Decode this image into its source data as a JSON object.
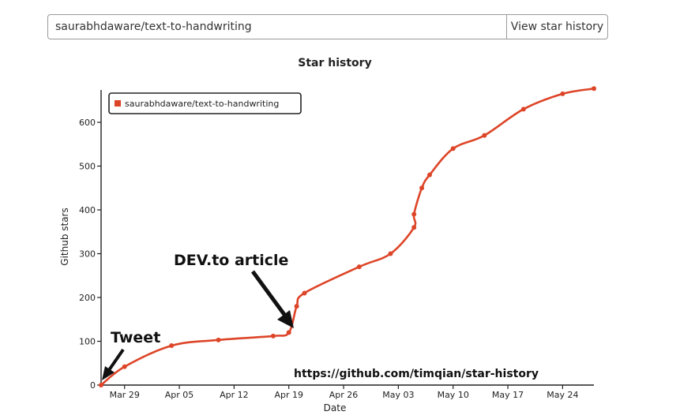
{
  "search": {
    "value": "saurabhdaware/text-to-handwriting",
    "button_label": "View star history"
  },
  "colors": {
    "series": "#dd4528",
    "axis": "#222222",
    "annotation": "#111111"
  },
  "chart_data": {
    "type": "line",
    "title": "Star history",
    "xlabel": "Date",
    "ylabel": "Github stars",
    "legend_position": "top-left",
    "grid": false,
    "xlim": [
      "2020-03-26",
      "2020-05-28"
    ],
    "ylim": [
      0,
      700
    ],
    "x_ticks": [
      "Mar 29",
      "Apr 05",
      "Apr 12",
      "Apr 19",
      "Apr 26",
      "May 03",
      "May 10",
      "May 17",
      "May 24"
    ],
    "y_ticks": [
      0,
      100,
      200,
      300,
      400,
      500,
      600
    ],
    "series": [
      {
        "name": "saurabhdaware/text-to-handwriting",
        "points": [
          {
            "x": "2020-03-26",
            "y": 0
          },
          {
            "x": "2020-03-29",
            "y": 42
          },
          {
            "x": "2020-04-04",
            "y": 90
          },
          {
            "x": "2020-04-10",
            "y": 103
          },
          {
            "x": "2020-04-17",
            "y": 112
          },
          {
            "x": "2020-04-19",
            "y": 120
          },
          {
            "x": "2020-04-20",
            "y": 180
          },
          {
            "x": "2020-04-21",
            "y": 210
          },
          {
            "x": "2020-04-28",
            "y": 270
          },
          {
            "x": "2020-05-02",
            "y": 300
          },
          {
            "x": "2020-05-05",
            "y": 360
          },
          {
            "x": "2020-05-05",
            "y": 390
          },
          {
            "x": "2020-05-06",
            "y": 450
          },
          {
            "x": "2020-05-07",
            "y": 480
          },
          {
            "x": "2020-05-10",
            "y": 540
          },
          {
            "x": "2020-05-14",
            "y": 570
          },
          {
            "x": "2020-05-19",
            "y": 630
          },
          {
            "x": "2020-05-24",
            "y": 665
          },
          {
            "x": "2020-05-28",
            "y": 677
          }
        ]
      }
    ],
    "annotations": [
      {
        "text": "Tweet",
        "x": "2020-03-26",
        "y": 0
      },
      {
        "text": "DEV.to article",
        "x": "2020-04-19",
        "y": 120
      }
    ],
    "watermark": "https://github.com/timqian/star-history"
  }
}
